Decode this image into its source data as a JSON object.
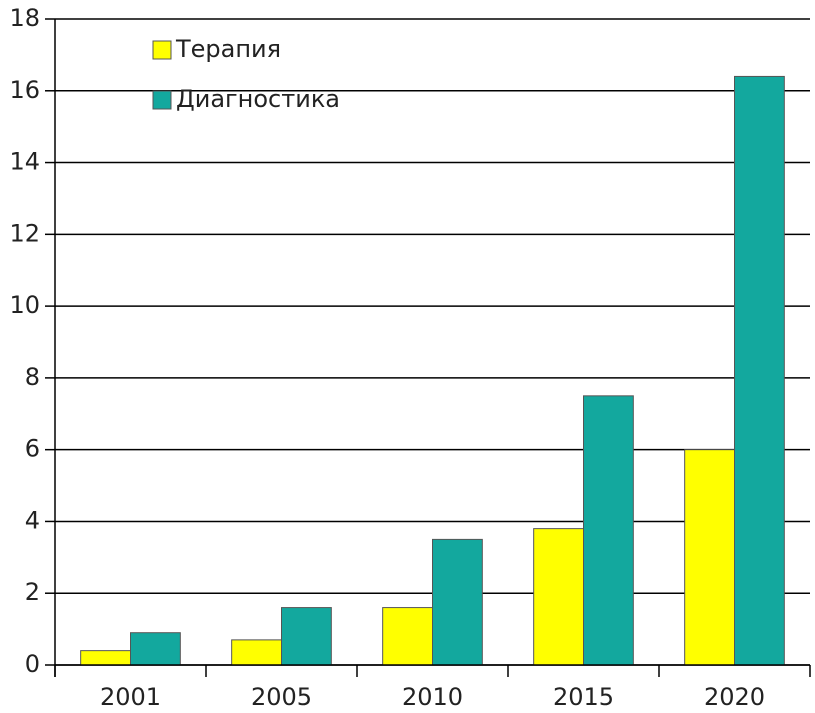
{
  "chart_data": {
    "type": "bar",
    "categories": [
      "2001",
      "2005",
      "2010",
      "2015",
      "2020"
    ],
    "series": [
      {
        "name": "Терапия",
        "color": "#ffff00",
        "values": [
          0.4,
          0.7,
          1.6,
          3.8,
          6.0
        ]
      },
      {
        "name": "Диагностика",
        "color": "#13a89e",
        "values": [
          0.9,
          1.6,
          3.5,
          7.5,
          16.4
        ]
      }
    ],
    "ylim": [
      0,
      18
    ],
    "yticks": [
      0,
      2,
      4,
      6,
      8,
      10,
      12,
      14,
      16,
      18
    ],
    "grid": true,
    "legend": "top-left"
  }
}
